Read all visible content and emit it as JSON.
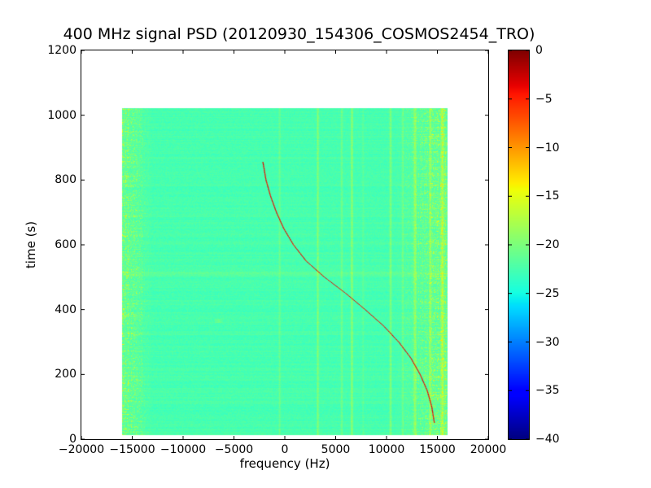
{
  "figure": {
    "title": "400 MHz signal PSD (20120930_154306_COSMOS2454_TRO)",
    "xlabel": "frequency (Hz)",
    "ylabel": "time (s)"
  },
  "chart_data": {
    "type": "heatmap",
    "title": "400 MHz signal PSD (20120930_154306_COSMOS2454_TRO)",
    "xlabel": "frequency (Hz)",
    "ylabel": "time (s)",
    "xlim": [
      -20000,
      20000
    ],
    "ylim": [
      0,
      1200
    ],
    "grid": false,
    "colormap": "jet",
    "xticks": [
      {
        "value": -20000,
        "label": "−20000"
      },
      {
        "value": -15000,
        "label": "−15000"
      },
      {
        "value": -10000,
        "label": "−10000"
      },
      {
        "value": -5000,
        "label": "−5000"
      },
      {
        "value": 0,
        "label": "0"
      },
      {
        "value": 5000,
        "label": "5000"
      },
      {
        "value": 10000,
        "label": "10000"
      },
      {
        "value": 15000,
        "label": "15000"
      },
      {
        "value": 20000,
        "label": "20000"
      }
    ],
    "yticks": [
      {
        "value": 0,
        "label": "0"
      },
      {
        "value": 200,
        "label": "200"
      },
      {
        "value": 400,
        "label": "400"
      },
      {
        "value": 600,
        "label": "600"
      },
      {
        "value": 800,
        "label": "800"
      },
      {
        "value": 1000,
        "label": "1000"
      },
      {
        "value": 1200,
        "label": "1200"
      }
    ],
    "colorbar": {
      "min": -40,
      "max": 0,
      "ticks": [
        {
          "value": 0,
          "label": "0"
        },
        {
          "value": -5,
          "label": "−5"
        },
        {
          "value": -10,
          "label": "−10"
        },
        {
          "value": -15,
          "label": "−15"
        },
        {
          "value": -20,
          "label": "−20"
        },
        {
          "value": -25,
          "label": "−25"
        },
        {
          "value": -30,
          "label": "−30"
        },
        {
          "value": -35,
          "label": "−35"
        },
        {
          "value": -40,
          "label": "−40"
        }
      ]
    },
    "data_extent": {
      "freq_min_hz": -16000,
      "freq_max_hz": 16000,
      "time_min_s": 12,
      "time_max_s": 1022
    },
    "background_level_db": -22.5,
    "noise_bands": [
      {
        "freq_start_hz": -16000,
        "freq_end_hz": -13000,
        "max_boost_db": 5
      },
      {
        "freq_start_hz": 10800,
        "freq_end_hz": 16000,
        "max_boost_db": 5
      }
    ],
    "spectral_lines": [
      {
        "freq_hz": -500,
        "boost_db": 2.5,
        "width_hz": 150
      },
      {
        "freq_hz": 3250,
        "boost_db": 4.0,
        "width_hz": 170
      },
      {
        "freq_hz": 5600,
        "boost_db": 3.0,
        "width_hz": 150
      },
      {
        "freq_hz": 6600,
        "boost_db": 4.5,
        "width_hz": 170
      },
      {
        "freq_hz": 7700,
        "boost_db": 1.5,
        "width_hz": 130
      },
      {
        "freq_hz": 10400,
        "boost_db": 4.0,
        "width_hz": 170
      },
      {
        "freq_hz": 11600,
        "boost_db": 2.5,
        "width_hz": 150
      },
      {
        "freq_hz": 12800,
        "boost_db": 5.0,
        "width_hz": 190
      },
      {
        "freq_hz": 14300,
        "boost_db": 4.5,
        "width_hz": 170
      },
      {
        "freq_hz": 15500,
        "boost_db": 5.0,
        "width_hz": 260
      }
    ],
    "faint_horizontal_line": {
      "time_s": 510,
      "boost_db": 1.0
    },
    "faint_blobs": [
      {
        "time_s": 365,
        "freq_hz": -6500,
        "boost_db": 2.0,
        "width_hz": 500,
        "height_s": 6
      }
    ],
    "doppler_track": {
      "level_db": -3,
      "points_t_f": [
        [
          855,
          -2150
        ],
        [
          800,
          -1850
        ],
        [
          750,
          -1400
        ],
        [
          700,
          -820
        ],
        [
          650,
          -100
        ],
        [
          600,
          850
        ],
        [
          550,
          2100
        ],
        [
          500,
          3900
        ],
        [
          450,
          6000
        ],
        [
          400,
          7900
        ],
        [
          350,
          9700
        ],
        [
          300,
          11200
        ],
        [
          250,
          12400
        ],
        [
          200,
          13300
        ],
        [
          150,
          14000
        ],
        [
          100,
          14450
        ],
        [
          50,
          14700
        ]
      ]
    }
  }
}
